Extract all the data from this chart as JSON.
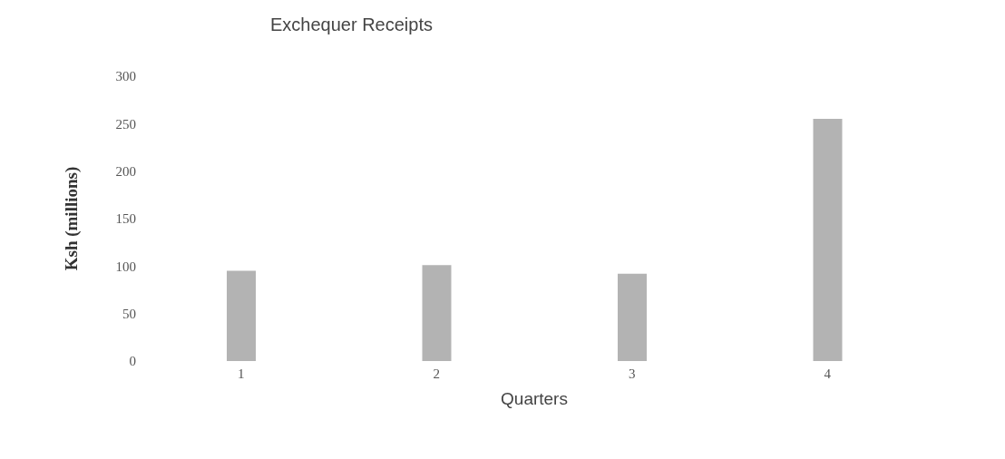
{
  "chart_data": {
    "type": "bar",
    "title": "Exchequer Receipts",
    "xlabel": "Quarters",
    "ylabel": "Ksh (millions)",
    "categories": [
      "1",
      "2",
      "3",
      "4"
    ],
    "values": [
      95,
      101,
      92,
      255
    ],
    "color": "#b3b3b3",
    "ylim": [
      0,
      300
    ],
    "yticks": [
      0,
      50,
      100,
      150,
      200,
      250,
      300
    ],
    "grid": false
  }
}
